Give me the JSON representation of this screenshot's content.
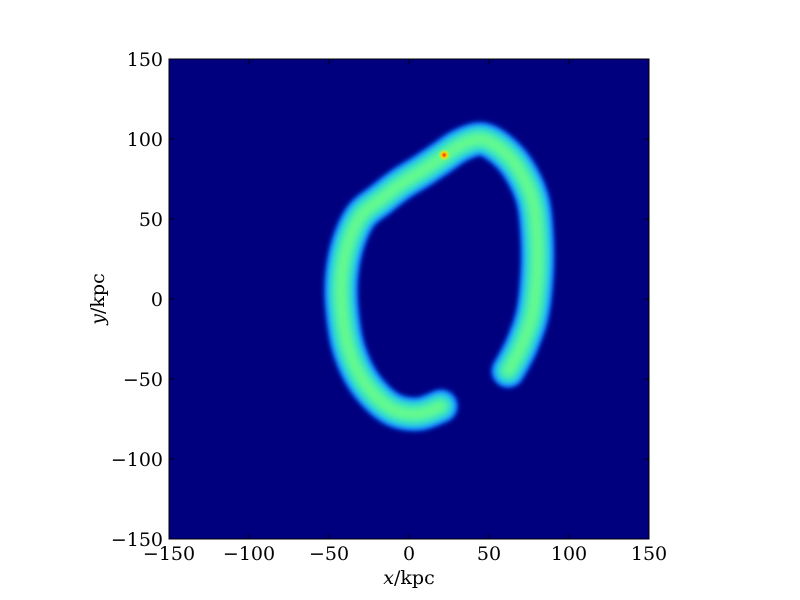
{
  "chart_data": {
    "type": "heatmap",
    "title": "",
    "xlabel": "x/kpc",
    "ylabel": "y/kpc",
    "xlim": [
      -150,
      150
    ],
    "ylim": [
      -150,
      150
    ],
    "xticks": [
      -150,
      -100,
      -50,
      0,
      50,
      100,
      150
    ],
    "yticks": [
      -150,
      -100,
      -50,
      0,
      50,
      100,
      150
    ],
    "xtick_labels": [
      "−150",
      "−100",
      "−50",
      "0",
      "50",
      "100",
      "150"
    ],
    "ytick_labels": [
      "−150",
      "−100",
      "−50",
      "0",
      "50",
      "100",
      "150"
    ],
    "grid": false,
    "colormap": "jet",
    "background_color": "#00007f",
    "colors": {
      "low": "#00007f",
      "edge": "#1fb8ff",
      "mid": "#7cff79",
      "peak": "#ff2000"
    },
    "stream_ridge": [
      [
        20,
        -67
      ],
      [
        5,
        -72
      ],
      [
        -12,
        -68
      ],
      [
        -28,
        -52
      ],
      [
        -38,
        -30
      ],
      [
        -42,
        -5
      ],
      [
        -42,
        15
      ],
      [
        -38,
        35
      ],
      [
        -30,
        52
      ],
      [
        -18,
        62
      ],
      [
        -5,
        72
      ],
      [
        8,
        80
      ],
      [
        20,
        88
      ],
      [
        32,
        96
      ],
      [
        45,
        100
      ],
      [
        57,
        94
      ],
      [
        68,
        82
      ],
      [
        77,
        63
      ],
      [
        80,
        40
      ],
      [
        80,
        15
      ],
      [
        77,
        -10
      ],
      [
        70,
        -30
      ],
      [
        62,
        -45
      ]
    ],
    "peak": [
      22,
      90
    ]
  }
}
